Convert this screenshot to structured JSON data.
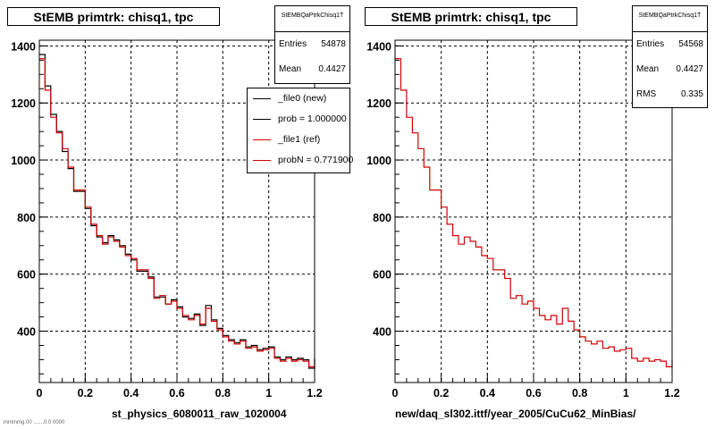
{
  "chart_data": [
    {
      "type": "line",
      "title": "StEMB primtrk: chisq1, tpc",
      "xlabel": "st_physics_6080011_raw_1020004",
      "ylabel": "",
      "xlim": [
        0,
        1.2
      ],
      "ylim": [
        220,
        1420
      ],
      "x_ticks": [
        "0",
        "0.2",
        "0.4",
        "0.6",
        "0.8",
        "1",
        "1.2"
      ],
      "y_ticks": [
        "400",
        "600",
        "800",
        "1000",
        "1200",
        "1400"
      ],
      "grid": true,
      "bin_width": 0.025,
      "series": [
        {
          "name": "_file0 (new)",
          "color": "#000000",
          "values": [
            1370,
            1260,
            1160,
            1100,
            1030,
            970,
            890,
            890,
            830,
            770,
            730,
            710,
            735,
            720,
            700,
            670,
            650,
            610,
            610,
            590,
            520,
            520,
            495,
            510,
            485,
            450,
            445,
            460,
            420,
            490,
            440,
            410,
            385,
            370,
            360,
            370,
            345,
            350,
            335,
            340,
            345,
            310,
            300,
            310,
            300,
            305,
            300,
            270,
            305
          ]
        },
        {
          "name": "_file1 (ref)",
          "color": "#d00000",
          "values": [
            1355,
            1245,
            1150,
            1095,
            1040,
            975,
            895,
            895,
            835,
            775,
            735,
            705,
            730,
            715,
            695,
            665,
            655,
            615,
            615,
            585,
            515,
            525,
            495,
            505,
            480,
            455,
            440,
            455,
            425,
            480,
            435,
            405,
            380,
            365,
            355,
            365,
            340,
            345,
            330,
            335,
            340,
            305,
            295,
            305,
            295,
            300,
            295,
            275,
            300
          ]
        }
      ],
      "stats": {
        "header": "StEMBQaPtrkChisq1T",
        "entries_label": "Entries",
        "entries": "54878",
        "mean_label": "Mean",
        "mean": "0.4427"
      },
      "legend": [
        "_file0 (new)",
        "prob = 1.000000",
        "_file1 (ref)",
        "probN = 0.771900"
      ]
    },
    {
      "type": "line",
      "title": "StEMB primtrk: chisq1, tpc",
      "xlabel": "new/daq_sl302.ittf/year_2005/CuCu62_MinBias/",
      "ylabel": "",
      "xlim": [
        0,
        1.2
      ],
      "ylim": [
        220,
        1420
      ],
      "x_ticks": [
        "0",
        "0.2",
        "0.4",
        "0.6",
        "0.8",
        "1",
        "1.2"
      ],
      "y_ticks": [
        "400",
        "600",
        "800",
        "1000",
        "1200",
        "1400"
      ],
      "grid": true,
      "bin_width": 0.025,
      "series": [
        {
          "name": "",
          "color": "#d00000",
          "values": [
            1355,
            1245,
            1150,
            1095,
            1040,
            975,
            895,
            895,
            835,
            775,
            735,
            705,
            730,
            715,
            695,
            665,
            655,
            615,
            615,
            585,
            515,
            525,
            495,
            505,
            480,
            455,
            440,
            455,
            425,
            480,
            435,
            405,
            380,
            365,
            355,
            365,
            340,
            345,
            330,
            335,
            340,
            305,
            295,
            305,
            295,
            300,
            295,
            275,
            300
          ]
        }
      ],
      "stats": {
        "header": "StEMBQaPtrkChisq1T",
        "entries_label": "Entries",
        "entries": "54568",
        "mean_label": "Mean",
        "mean": "0.4427",
        "rms_label": "RMS",
        "rms": "0.335"
      }
    }
  ],
  "footer": "mmmmg.00 .......0.0 0000"
}
